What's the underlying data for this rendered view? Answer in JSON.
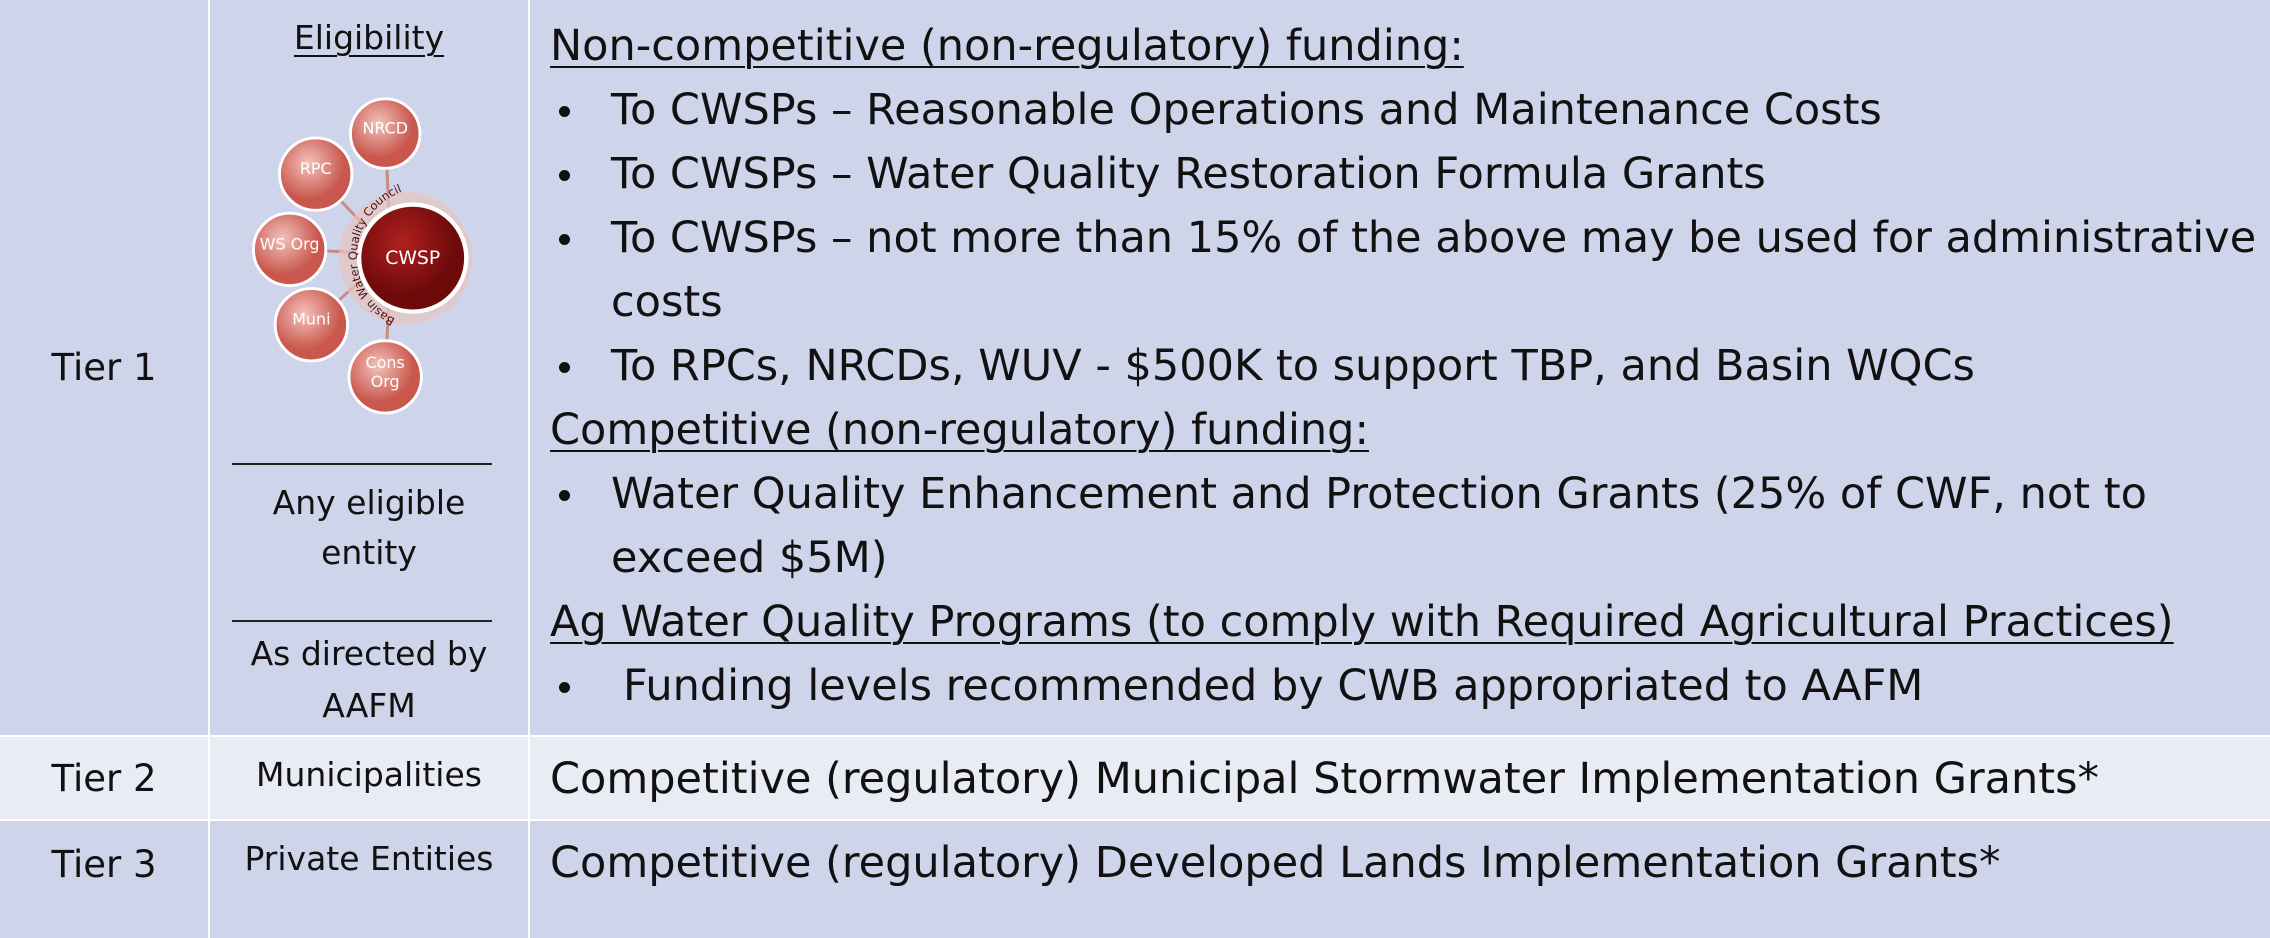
{
  "table": {
    "rows": [
      {
        "tier": "Tier 1",
        "eligibility": {
          "heading": "Eligibility",
          "diagram": {
            "center": "CWSP",
            "ring": "Basin Water Quality Council",
            "nodes": [
              "NRCD",
              "RPC",
              "WS Org",
              "Muni",
              "Cons Org"
            ]
          },
          "other": [
            "Any eligible entity",
            "As directed by AAFM"
          ]
        },
        "funding": [
          {
            "heading": "Non-competitive (non-regulatory) funding:",
            "items": [
              "To CWSPs – Reasonable Operations and Maintenance Costs",
              "To CWSPs – Water Quality Restoration Formula Grants",
              "To CWSPs – not more than 15% of the above may be used for administrative costs",
              "To RPCs, NRCDs, WUV - $500K to support TBP, and Basin WQCs"
            ]
          },
          {
            "heading": "Competitive (non-regulatory) funding:",
            "items": [
              "Water Quality Enhancement and Protection Grants (25% of CWF, not to exceed $5M)"
            ]
          },
          {
            "heading": "Ag Water Quality Programs (to comply with Required Agricultural Practices)",
            "items": [
              "Funding levels recommended by CWB appropriated to AAFM"
            ]
          }
        ]
      },
      {
        "tier": "Tier 2",
        "eligibility": "Municipalities",
        "funding": "Competitive (regulatory) Municipal Stormwater Implementation Grants*"
      },
      {
        "tier": "Tier 3",
        "eligibility": "Private Entities",
        "funding": "Competitive (regulatory) Developed Lands Implementation Grants*"
      }
    ]
  }
}
